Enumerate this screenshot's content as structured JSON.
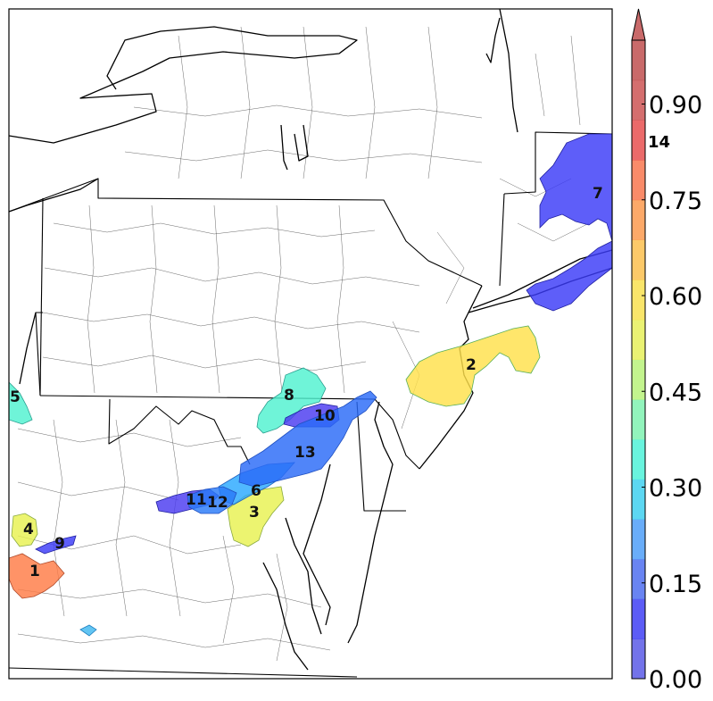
{
  "colorbar": {
    "ticks": [
      "0.00",
      "0.15",
      "0.30",
      "0.45",
      "0.60",
      "0.75",
      "0.90"
    ],
    "extend": "max",
    "colors": [
      "#5a5ae6",
      "#3f3ff5",
      "#4f6ff0",
      "#4f9ff8",
      "#3fd0f0",
      "#4ff2d8",
      "#7ff2b0",
      "#b8f27a",
      "#e6f05a",
      "#f8e050",
      "#fbbf4f",
      "#fb9a4f",
      "#f8774f",
      "#e85050",
      "#cc5555",
      "#c05050"
    ]
  },
  "annotation": "14",
  "regions": [
    {
      "label": "1",
      "color": "#ff7b45"
    },
    {
      "label": "2",
      "color": "#ffe04a"
    },
    {
      "label": "3",
      "color": "#e8f250"
    },
    {
      "label": "4",
      "color": "#e8f250"
    },
    {
      "label": "5",
      "color": "#4ff2d0"
    },
    {
      "label": "6",
      "color": "#2aa8ff"
    },
    {
      "label": "7",
      "color": "#3a3af8"
    },
    {
      "label": "8",
      "color": "#4ff2d0"
    },
    {
      "label": "9",
      "color": "#3a3af8"
    },
    {
      "label": "10",
      "color": "#4a3af0"
    },
    {
      "label": "11",
      "color": "#4a3af0"
    },
    {
      "label": "12",
      "color": "#2a7af8"
    },
    {
      "label": "13",
      "color": "#2a6af8"
    }
  ]
}
